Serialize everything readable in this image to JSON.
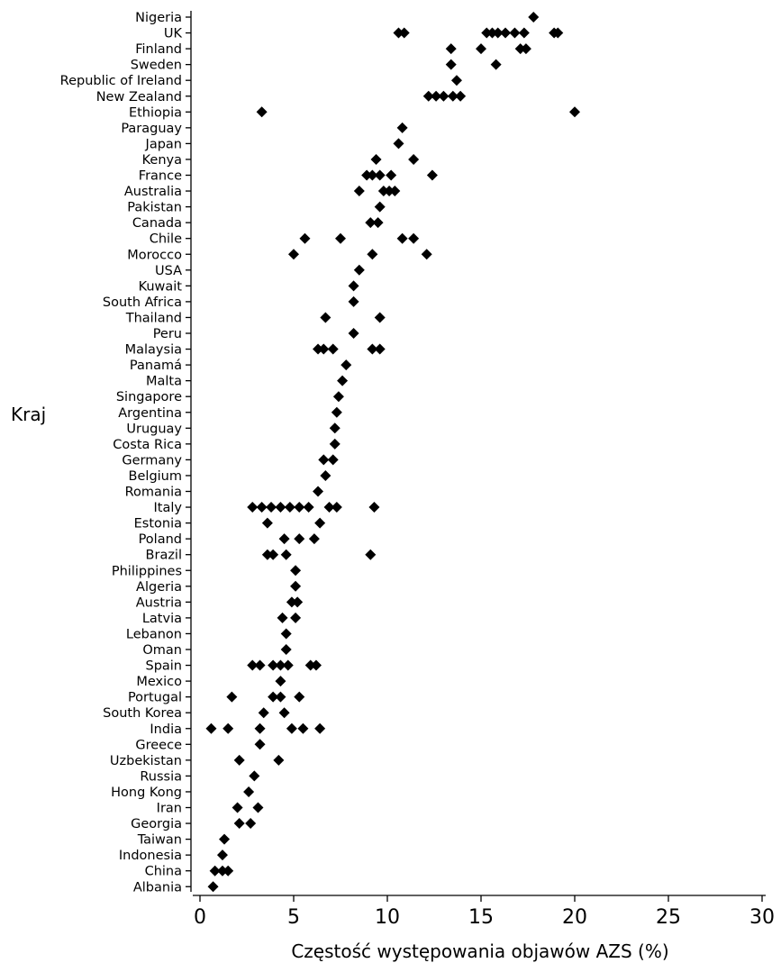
{
  "chart_data": {
    "type": "scatter",
    "title": "",
    "xlabel": "Częstość występowania objawów AZS (%)",
    "ylabel": "Kraj",
    "xlim": [
      0,
      30
    ],
    "xticks": [
      0,
      5,
      10,
      15,
      20,
      25,
      30
    ],
    "grid": false,
    "legend": "none",
    "marker": "diamond",
    "marker_color": "#000000",
    "categories": [
      "Nigeria",
      "UK",
      "Finland",
      "Sweden",
      "Republic of Ireland",
      "New Zealand",
      "Ethiopia",
      "Paraguay",
      "Japan",
      "Kenya",
      "France",
      "Australia",
      "Pakistan",
      "Canada",
      "Chile",
      "Morocco",
      "USA",
      "Kuwait",
      "South Africa",
      "Thailand",
      "Peru",
      "Malaysia",
      "Panamá",
      "Malta",
      "Singapore",
      "Argentina",
      "Uruguay",
      "Costa Rica",
      "Germany",
      "Belgium",
      "Romania",
      "Italy",
      "Estonia",
      "Poland",
      "Brazil",
      "Philippines",
      "Algeria",
      "Austria",
      "Latvia",
      "Lebanon",
      "Oman",
      "Spain",
      "Mexico",
      "Portugal",
      "South Korea",
      "India",
      "Greece",
      "Uzbekistan",
      "Russia",
      "Hong Kong",
      "Iran",
      "Georgia",
      "Taiwan",
      "Indonesia",
      "China",
      "Albania"
    ],
    "values": [
      [
        17.8
      ],
      [
        10.6,
        10.9,
        15.3,
        15.6,
        15.9,
        16.3,
        16.8,
        17.3,
        18.9,
        19.1
      ],
      [
        13.4,
        15.0,
        17.1,
        17.4
      ],
      [
        13.4,
        15.8
      ],
      [
        13.7
      ],
      [
        12.2,
        12.6,
        13.0,
        13.5,
        13.9
      ],
      [
        3.3,
        20.0
      ],
      [
        10.8
      ],
      [
        10.6
      ],
      [
        9.4,
        11.4
      ],
      [
        8.9,
        9.2,
        9.6,
        10.2,
        12.4
      ],
      [
        8.5,
        9.8,
        10.1,
        10.4
      ],
      [
        9.6
      ],
      [
        9.1,
        9.5
      ],
      [
        5.6,
        7.5,
        10.8,
        11.4
      ],
      [
        5.0,
        9.2,
        12.1
      ],
      [
        8.5
      ],
      [
        8.2
      ],
      [
        8.2
      ],
      [
        6.7,
        9.6
      ],
      [
        8.2
      ],
      [
        6.3,
        6.6,
        7.1,
        9.2,
        9.6
      ],
      [
        7.8
      ],
      [
        7.6
      ],
      [
        7.4
      ],
      [
        7.3
      ],
      [
        7.2
      ],
      [
        7.2
      ],
      [
        6.6,
        7.1
      ],
      [
        6.7
      ],
      [
        6.3
      ],
      [
        2.8,
        3.3,
        3.8,
        4.3,
        4.8,
        5.3,
        5.8,
        6.9,
        7.3,
        9.3
      ],
      [
        3.6,
        6.4
      ],
      [
        4.5,
        5.3,
        6.1
      ],
      [
        3.6,
        3.9,
        4.6,
        9.1
      ],
      [
        5.1
      ],
      [
        5.1
      ],
      [
        4.9,
        5.2
      ],
      [
        4.4,
        5.1
      ],
      [
        4.6
      ],
      [
        4.6
      ],
      [
        2.8,
        3.2,
        3.9,
        4.3,
        4.7,
        5.9,
        6.2
      ],
      [
        4.3
      ],
      [
        1.7,
        3.9,
        4.3,
        5.3
      ],
      [
        3.4,
        4.5
      ],
      [
        0.6,
        1.5,
        3.2,
        4.9,
        5.5,
        6.4
      ],
      [
        3.2
      ],
      [
        2.1,
        4.2
      ],
      [
        2.9
      ],
      [
        2.6
      ],
      [
        2.0,
        3.1
      ],
      [
        2.1,
        2.7
      ],
      [
        1.3
      ],
      [
        1.2
      ],
      [
        0.8,
        1.2,
        1.5
      ],
      [
        0.7
      ]
    ]
  }
}
